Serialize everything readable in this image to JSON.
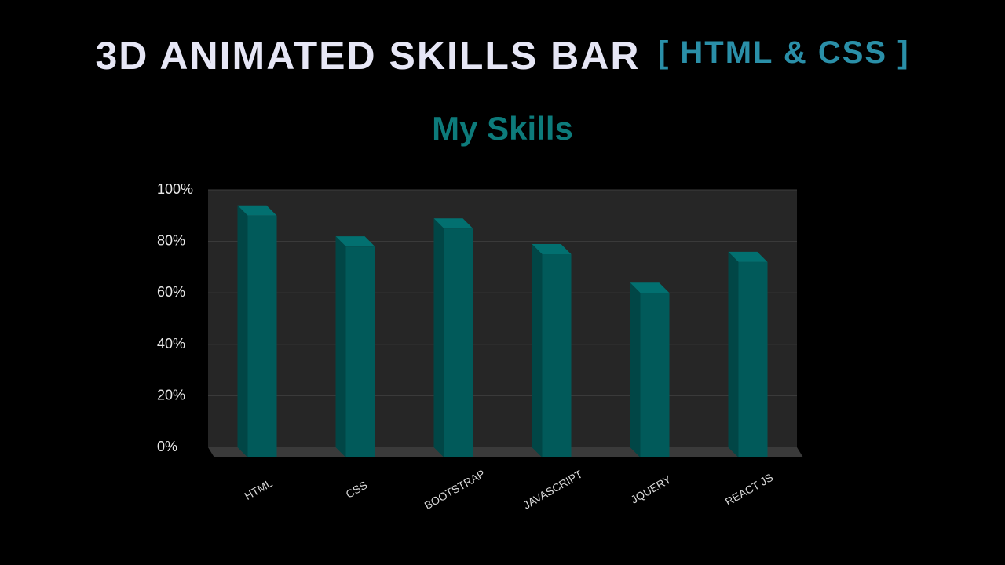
{
  "header": {
    "title": "3D ANIMATED SKILLS BAR",
    "subtitle": "[ HTML & CSS ]"
  },
  "chart_data": {
    "type": "bar",
    "title": "My Skills",
    "categories": [
      "HTML",
      "CSS",
      "BOOTSTRAP",
      "JAVASCRIPT",
      "JQUERY",
      "REACT JS"
    ],
    "values": [
      90,
      78,
      85,
      75,
      60,
      72
    ],
    "ylim": [
      0,
      100
    ],
    "yticks": [
      "0%",
      "20%",
      "40%",
      "60%",
      "80%",
      "100%"
    ],
    "xlabel": "",
    "ylabel": "",
    "grid": true,
    "legend": "none",
    "colors": {
      "bar_front": "#015a5a",
      "bar_side": "#014646",
      "bar_top": "#027070",
      "plot_back": "#262626",
      "floor": "#3a3a3a",
      "title": "#0d7b7b",
      "subtitle": "#2a8fa8"
    }
  }
}
